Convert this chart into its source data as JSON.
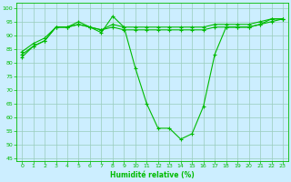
{
  "xlabel": "Humidité relative (%)",
  "background_color": "#cceeff",
  "grid_color": "#99ccbb",
  "line_color": "#00bb00",
  "xlim": [
    -0.5,
    23.5
  ],
  "ylim": [
    44,
    102
  ],
  "yticks": [
    45,
    50,
    55,
    60,
    65,
    70,
    75,
    80,
    85,
    90,
    95,
    100
  ],
  "xticks": [
    0,
    1,
    2,
    3,
    4,
    5,
    6,
    7,
    8,
    9,
    10,
    11,
    12,
    13,
    14,
    15,
    16,
    17,
    18,
    19,
    20,
    21,
    22,
    23
  ],
  "line1_x": [
    0,
    1,
    2,
    3,
    4,
    5,
    6,
    7,
    8,
    9,
    10,
    11,
    12,
    13,
    14,
    15,
    16,
    17,
    18,
    19,
    20,
    21,
    22,
    23
  ],
  "line1_y": [
    82,
    86,
    88,
    93,
    93,
    95,
    93,
    91,
    97,
    93,
    78,
    65,
    56,
    56,
    52,
    54,
    64,
    83,
    93,
    93,
    93,
    94,
    96,
    96
  ],
  "line2_x": [
    0,
    1,
    2,
    3,
    4,
    5,
    6,
    7,
    8,
    9,
    10,
    11,
    12,
    13,
    14,
    15,
    16,
    17,
    18,
    19,
    20,
    21,
    22,
    23
  ],
  "line2_y": [
    84,
    87,
    89,
    93,
    93,
    94,
    93,
    92,
    93,
    92,
    92,
    92,
    92,
    92,
    92,
    92,
    92,
    93,
    93,
    93,
    93,
    94,
    95,
    96
  ],
  "line3_x": [
    0,
    1,
    2,
    3,
    4,
    5,
    6,
    7,
    8,
    9,
    10,
    11,
    12,
    13,
    14,
    15,
    16,
    17,
    18,
    19,
    20,
    21,
    22,
    23
  ],
  "line3_y": [
    83,
    86,
    88,
    93,
    93,
    94,
    93,
    92,
    94,
    93,
    93,
    93,
    93,
    93,
    93,
    93,
    93,
    94,
    94,
    94,
    94,
    95,
    96,
    96
  ]
}
